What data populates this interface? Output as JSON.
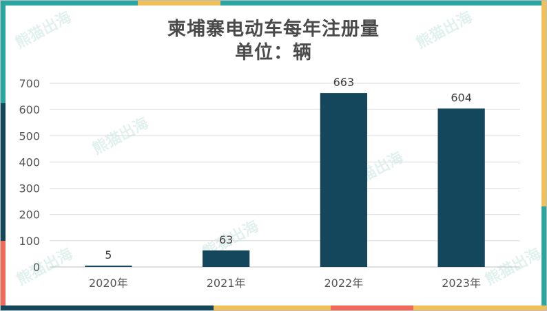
{
  "chart_data": {
    "type": "bar",
    "title": "柬埔寨电动车每年注册量",
    "subtitle": "单位：辆",
    "categories": [
      "2020年",
      "2021年",
      "2022年",
      "2023年"
    ],
    "values": [
      5,
      63,
      663,
      604
    ],
    "data_labels": [
      "5",
      "63",
      "663",
      "604"
    ],
    "ylim": [
      0,
      700
    ],
    "yticks": [
      0,
      100,
      200,
      300,
      400,
      500,
      600,
      700
    ],
    "grid": true,
    "legend": "none",
    "bar_color": "#14475c",
    "xlabel": "",
    "ylabel": ""
  },
  "watermark_text": "熊猫出海",
  "theme": {
    "teal": "#2aa5a0",
    "navy": "#14475c",
    "yellow": "#f0c05a",
    "coral": "#ef6a5a"
  }
}
